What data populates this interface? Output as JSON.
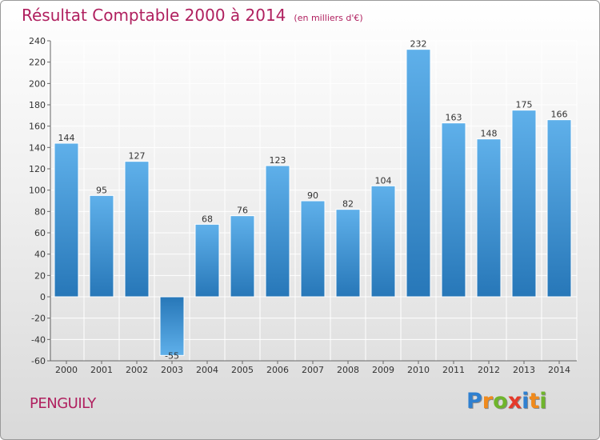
{
  "header": {
    "title": "Résultat Comptable 2000 à 2014",
    "unit": "(en milliers d'€)"
  },
  "footer": {
    "commune": "PENGUILY",
    "logo_letters": [
      {
        "char": "P",
        "color": "#2f80d0"
      },
      {
        "char": "r",
        "color": "#f08a1c"
      },
      {
        "char": "o",
        "color": "#6fb52c"
      },
      {
        "char": "x",
        "color": "#e53a2a"
      },
      {
        "char": "i",
        "color": "#2f80d0"
      },
      {
        "char": "t",
        "color": "#f08a1c"
      },
      {
        "char": "i",
        "color": "#6fb52c"
      }
    ]
  },
  "chart_data": {
    "type": "bar",
    "title": "Résultat Comptable 2000 à 2014",
    "subtitle": "(en milliers d'€)",
    "categories": [
      "2000",
      "2001",
      "2002",
      "2003",
      "2004",
      "2005",
      "2006",
      "2007",
      "2008",
      "2009",
      "2010",
      "2011",
      "2012",
      "2013",
      "2014"
    ],
    "values": [
      144,
      95,
      127,
      -55,
      68,
      76,
      123,
      90,
      82,
      104,
      232,
      163,
      148,
      175,
      166
    ],
    "value_labels": [
      "144",
      "95",
      "127",
      "-55",
      "68",
      "76",
      "123",
      "90",
      "82",
      "104",
      "232",
      "163",
      "148",
      "175",
      "166"
    ],
    "ylim": [
      -60,
      240
    ],
    "yticks": [
      -60,
      -40,
      -20,
      0,
      20,
      40,
      60,
      80,
      100,
      120,
      140,
      160,
      180,
      200,
      220,
      240
    ],
    "grid": true,
    "colors": {
      "bar_light": "#5fb0ea",
      "bar_dark": "#2777b8",
      "grid": "#ffffff",
      "axis": "#666666",
      "text": "#333333"
    }
  }
}
